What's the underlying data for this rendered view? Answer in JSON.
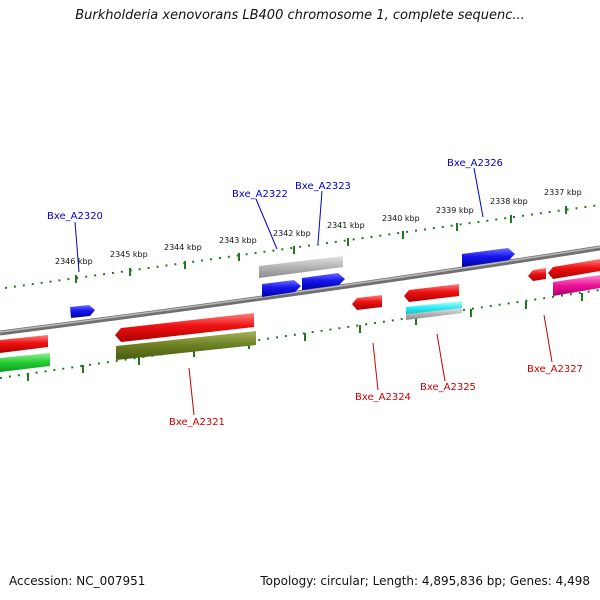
{
  "title": "Burkholderia xenovorans LB400 chromosome 1, complete sequenc...",
  "footer": {
    "accession": "Accession: NC_007951",
    "summary": "Topology: circular; Length: 4,895,836 bp; Genes: 4,498"
  },
  "scale_labels": [
    "2346 kbp",
    "2345 kbp",
    "2344 kbp",
    "2343 kbp",
    "2342 kbp",
    "2341 kbp",
    "2340 kbp",
    "2339 kbp",
    "2338 kbp",
    "2337 kbp"
  ],
  "gene_labels": {
    "Bxe_A2320": "Bxe_A2320",
    "Bxe_A2321": "Bxe_A2321",
    "Bxe_A2322": "Bxe_A2322",
    "Bxe_A2323": "Bxe_A2323",
    "Bxe_A2324": "Bxe_A2324",
    "Bxe_A2325": "Bxe_A2325",
    "Bxe_A2326": "Bxe_A2326",
    "Bxe_A2327": "Bxe_A2327"
  },
  "colors": {
    "forward_label": "#0000cc",
    "reverse_label": "#cc0000",
    "tick": "#1e7a1e",
    "backbone": "#888888"
  }
}
